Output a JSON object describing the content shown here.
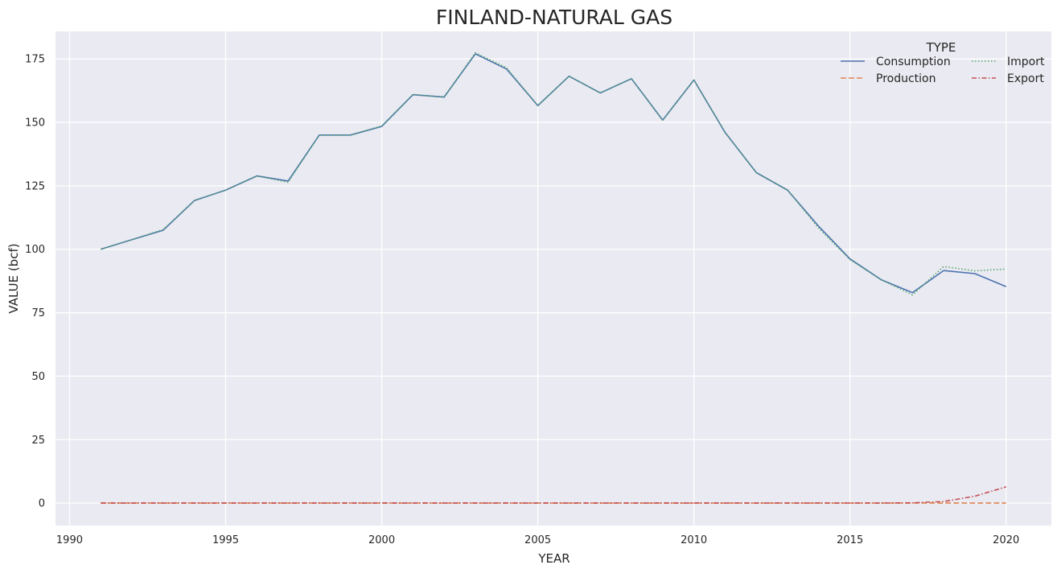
{
  "chart_data": {
    "type": "line",
    "title": "FINLAND-NATURAL GAS",
    "xlabel": "YEAR",
    "ylabel": "VALUE (bcf)",
    "xlim": [
      1989.55,
      2021.45
    ],
    "ylim": [
      -8.85,
      185.85
    ],
    "xticks": [
      1990,
      1995,
      2000,
      2005,
      2010,
      2015,
      2020
    ],
    "yticks": [
      0,
      25,
      50,
      75,
      100,
      125,
      150,
      175
    ],
    "grid": true,
    "legend": {
      "title": "TYPE",
      "placement": "top-right",
      "columns": 2
    },
    "x": [
      1991,
      1992,
      1993,
      1994,
      1995,
      1996,
      1997,
      1998,
      1999,
      2000,
      2001,
      2002,
      2003,
      2004,
      2005,
      2006,
      2007,
      2008,
      2009,
      2010,
      2011,
      2012,
      2013,
      2014,
      2015,
      2016,
      2017,
      2018,
      2019,
      2020
    ],
    "series": [
      {
        "name": "Consumption",
        "color": "#4c72b0",
        "dash": "solid",
        "values": [
          100,
          103.8,
          107.5,
          119.2,
          123.3,
          128.9,
          126.9,
          145,
          145,
          148.4,
          160.9,
          160,
          177,
          171,
          156.6,
          168.2,
          161.6,
          167.2,
          150.9,
          166.7,
          146,
          130.2,
          123.3,
          109,
          96.2,
          88,
          82.9,
          91.6,
          90.4,
          85.3
        ]
      },
      {
        "name": "Production",
        "color": "#dd8452",
        "dash": "dashed",
        "values": [
          0,
          0,
          0,
          0,
          0,
          0,
          0,
          0,
          0,
          0,
          0,
          0,
          0,
          0,
          0,
          0,
          0,
          0,
          0,
          0,
          0,
          0,
          0,
          0,
          0,
          0,
          0,
          0,
          0,
          0
        ]
      },
      {
        "name": "Import",
        "color": "#55a868",
        "dash": "dotted",
        "values": [
          100,
          103.8,
          107.8,
          119.2,
          123.3,
          128.9,
          126.4,
          145,
          145,
          148.6,
          161,
          159.9,
          177.4,
          171.5,
          156.6,
          168.2,
          161.6,
          167.2,
          150.9,
          166.7,
          146,
          130.2,
          123.3,
          108.3,
          95.9,
          88,
          82,
          93.2,
          91.5,
          92.2
        ]
      },
      {
        "name": "Export",
        "color": "#c44e52",
        "dash": "dashdot",
        "values": [
          0,
          0,
          0,
          0,
          0,
          0,
          0,
          0,
          0,
          0,
          0,
          0,
          0,
          0,
          0,
          0,
          0,
          0,
          0,
          0,
          0,
          0,
          0,
          0,
          0,
          0,
          0.1,
          0.6,
          2.7,
          6.4
        ]
      }
    ]
  }
}
